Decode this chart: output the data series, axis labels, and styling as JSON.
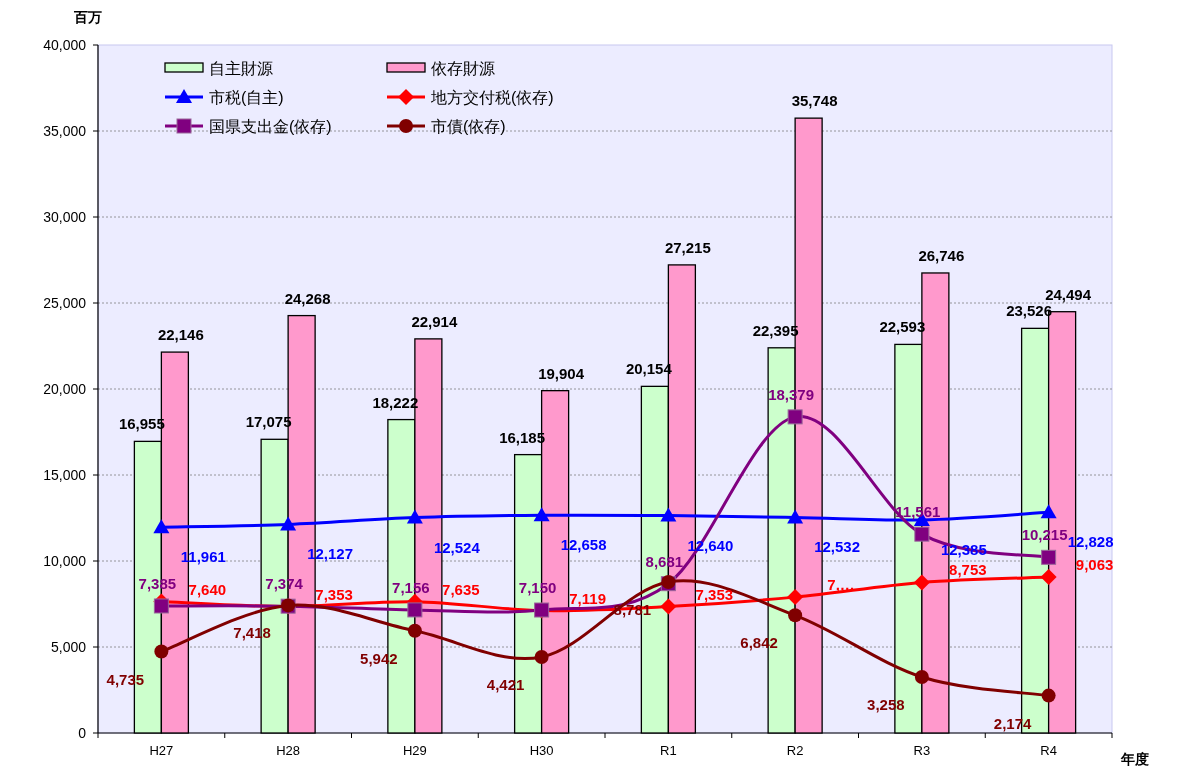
{
  "chart_data": {
    "type": "bar",
    "ylabel": "百万",
    "xlabel": "年度",
    "categories": [
      "H27",
      "H28",
      "H29",
      "H30",
      "R1",
      "R2",
      "R3",
      "R4"
    ],
    "ylim": [
      0,
      40000
    ],
    "yticks": [
      {
        "value": 0,
        "label": "0"
      },
      {
        "value": 5000,
        "label": "5,000"
      },
      {
        "value": 10000,
        "label": "10,000"
      },
      {
        "value": 15000,
        "label": "15,000"
      },
      {
        "value": 20000,
        "label": "20,000"
      },
      {
        "value": 25000,
        "label": "25,000"
      },
      {
        "value": 30000,
        "label": "30,000"
      },
      {
        "value": 35000,
        "label": "35,000"
      },
      {
        "value": 40000,
        "label": "40,000"
      }
    ],
    "grid": "y",
    "legend": "top left",
    "series": [
      {
        "name": "自主財源",
        "color": "#ccffcc",
        "values": [
          16955,
          17075,
          18222,
          16185,
          20154,
          22395,
          22593,
          23526
        ],
        "value_labels": [
          "16,955",
          "17,075",
          "18,222",
          "16,185",
          "20,154",
          "22,395",
          "22,593",
          "23,526"
        ]
      },
      {
        "name": "依存財源",
        "color": "#ff99cc",
        "values": [
          22146,
          24268,
          22914,
          19904,
          27215,
          35748,
          26746,
          24494
        ],
        "value_labels": [
          "22,146",
          "24,268",
          "22,914",
          "19,904",
          "27,215",
          "35,748",
          "26,746",
          "24,494"
        ]
      },
      {
        "name": "市税(自主)",
        "type": "line",
        "marker": "triangle",
        "color": "#0000ff",
        "values": [
          11961,
          12127,
          12524,
          12658,
          12640,
          12532,
          12385,
          12828
        ],
        "value_labels": [
          "11,961",
          "12,127",
          "12,524",
          "12,658",
          "12,640",
          "12,532",
          "12,385",
          "12,828"
        ]
      },
      {
        "name": "地方交付税(依存)",
        "type": "line",
        "marker": "diamond",
        "color": "#ff0000",
        "values": [
          7640,
          7353,
          7635,
          7119,
          7353,
          7900,
          8753,
          9063
        ],
        "value_labels": [
          "7,640",
          "7,353",
          "7,635",
          "7,119",
          "7,353",
          "7,…",
          "8,753",
          "9,063"
        ]
      },
      {
        "name": "国県支出金(依存)",
        "type": "line",
        "marker": "square",
        "color": "#800080",
        "values": [
          7385,
          7374,
          7156,
          7150,
          8681,
          18379,
          11561,
          10215
        ],
        "value_labels": [
          "7,385",
          "7,374",
          "7,156",
          "7,150",
          "8,681",
          "18,379",
          "11,561",
          "10,215"
        ]
      },
      {
        "name": "市債(依存)",
        "type": "line",
        "marker": "circle",
        "color": "#800000",
        "values": [
          4735,
          7418,
          5942,
          4421,
          8781,
          6842,
          3258,
          2174
        ],
        "value_labels": [
          "4,735",
          "7,418",
          "5,942",
          "4,421",
          "8,781",
          "6,842",
          "3,258",
          "2,174"
        ]
      }
    ]
  }
}
